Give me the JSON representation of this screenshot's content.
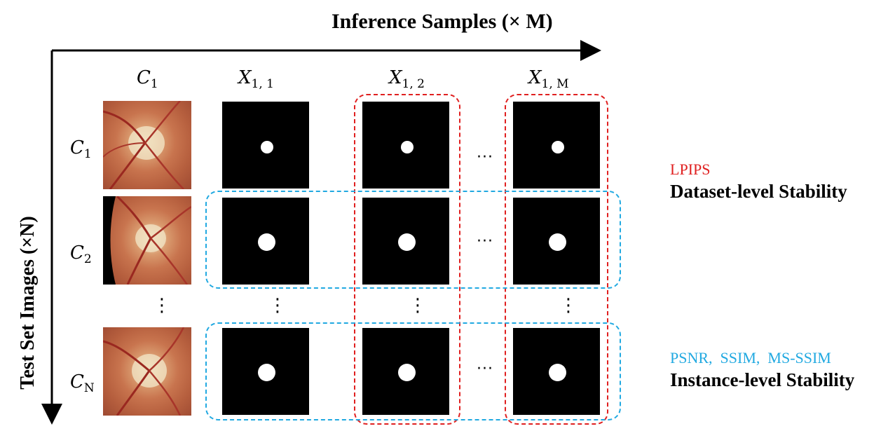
{
  "axes": {
    "top_label": "Inference Samples (× M)",
    "side_label": "Test Set Images (×N)"
  },
  "columns": [
    {
      "base": "C",
      "sub": "1"
    },
    {
      "base": "X",
      "sub": "1, 1"
    },
    {
      "base": "X",
      "sub": "1, 2"
    },
    {
      "base": "X",
      "sub": "1, M"
    }
  ],
  "rows": [
    {
      "base": "C",
      "sub": "1"
    },
    {
      "base": "C",
      "sub": "2"
    },
    {
      "base": "C",
      "sub": "N"
    }
  ],
  "ellipsis": "···",
  "vertical_ellipsis": "⋮",
  "legend": {
    "dataset_metric": "LPIPS",
    "dataset_label": "Dataset-level Stability",
    "instance_metric": "PSNR,  SSIM,  MS-SSIM",
    "instance_label": "Instance-level Stability"
  },
  "colors": {
    "dataset": "#e02020",
    "instance": "#21a9e1"
  }
}
